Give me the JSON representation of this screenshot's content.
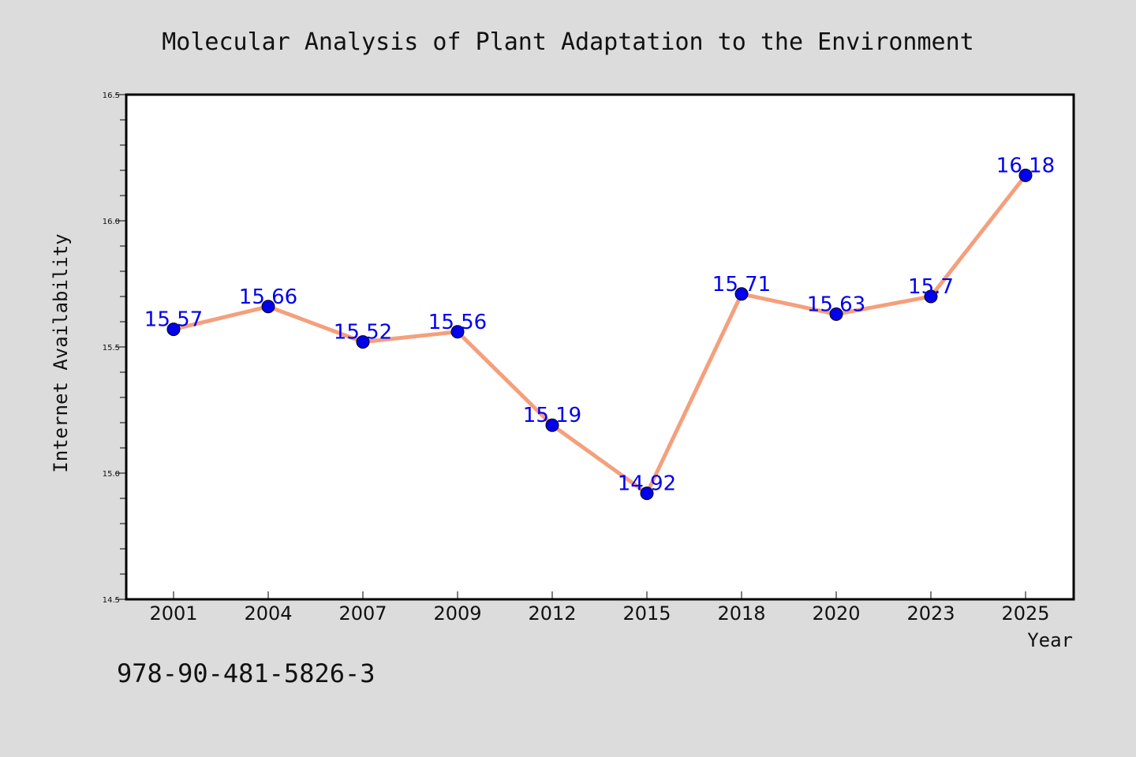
{
  "chart_data": {
    "type": "line",
    "title": "Molecular Analysis of Plant Adaptation to the Environment",
    "xlabel": "Year",
    "ylabel": "Internet Availability",
    "categories": [
      "2001",
      "2004",
      "2007",
      "2009",
      "2012",
      "2015",
      "2018",
      "2020",
      "2023",
      "2025"
    ],
    "values": [
      15.57,
      15.66,
      15.52,
      15.56,
      15.19,
      14.92,
      15.71,
      15.63,
      15.7,
      16.18
    ],
    "data_labels": [
      "15.57",
      "15.66",
      "15.52",
      "15.56",
      "15.19",
      "14.92",
      "15.71",
      "15.63",
      "15.7",
      "16.18"
    ],
    "ylim": [
      14.5,
      16.5
    ],
    "yticks": [
      14.5,
      15.0,
      15.5,
      16.0,
      16.5
    ],
    "ytick_labels": [
      "14.5",
      "15.0",
      "15.5",
      "16.0",
      "16.5"
    ],
    "grid": false,
    "legend": "none",
    "colors": {
      "line": "#f4a07c",
      "marker": "#0000ee",
      "label": "#0000ee",
      "background": "#dcdcdc",
      "plot_background": "#ffffff"
    }
  },
  "footnote": "978-90-481-5826-3"
}
